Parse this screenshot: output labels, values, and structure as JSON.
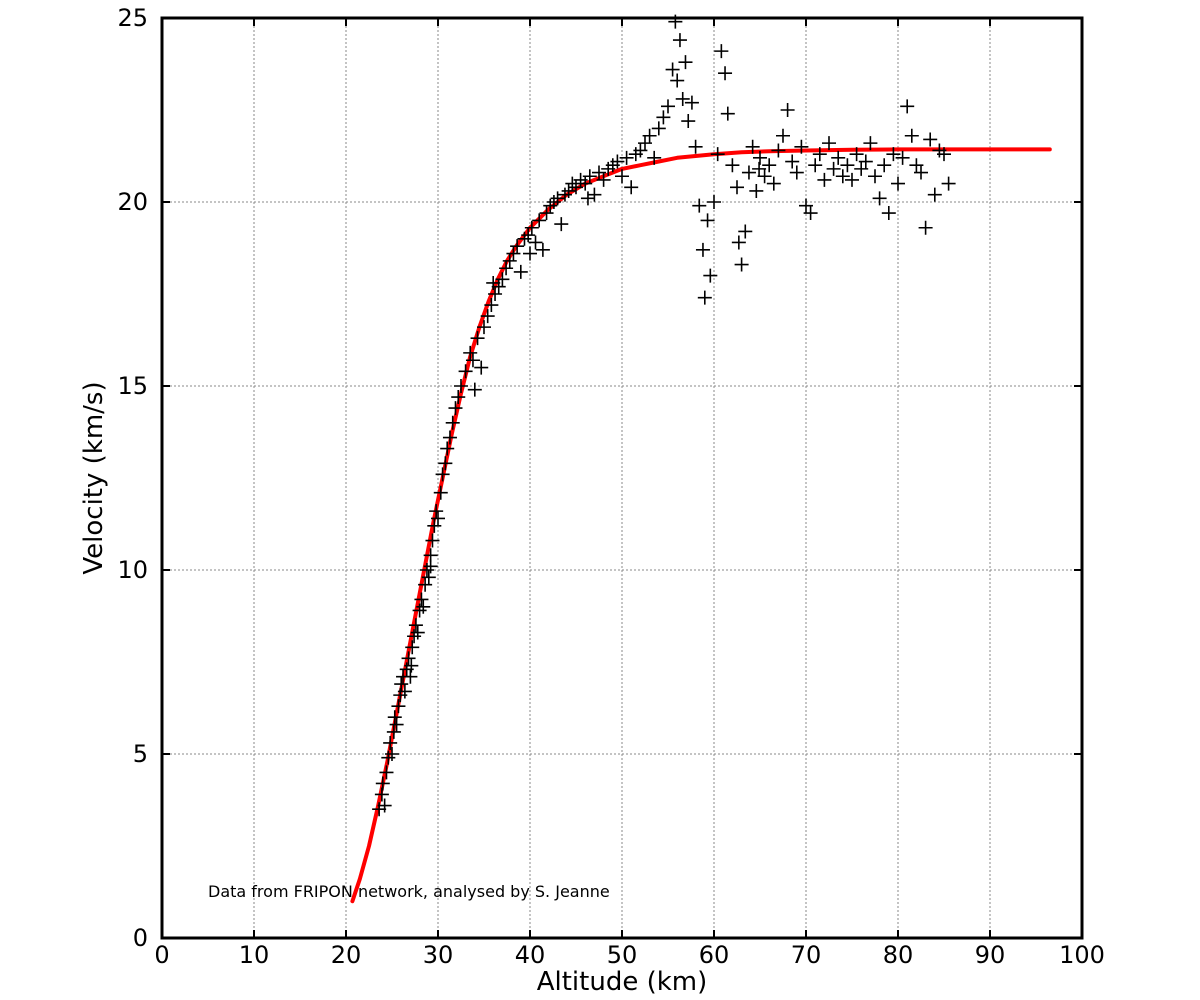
{
  "chart_data": {
    "type": "scatter",
    "title": "",
    "xlabel": "Altitude (km)",
    "ylabel": "Velocity (km/s)",
    "xlim": [
      0,
      100
    ],
    "ylim": [
      0,
      25
    ],
    "xticks": [
      "0",
      "10",
      "20",
      "30",
      "40",
      "50",
      "60",
      "70",
      "80",
      "90",
      "100"
    ],
    "yticks": [
      "0",
      "5",
      "10",
      "15",
      "20",
      "25"
    ],
    "grid": true,
    "legend": "none",
    "annotation": "Data from FRIPON network, analysed by S. Jeanne",
    "colors": {
      "points": "#000000",
      "fit": "#ff0000"
    },
    "series": [
      {
        "marker": "plus",
        "points": [
          [
            23.6,
            3.5
          ],
          [
            23.9,
            3.9
          ],
          [
            24.0,
            4.2
          ],
          [
            24.2,
            3.6
          ],
          [
            24.4,
            4.5
          ],
          [
            24.6,
            4.9
          ],
          [
            24.8,
            5.3
          ],
          [
            25.0,
            5.0
          ],
          [
            25.2,
            5.6
          ],
          [
            25.3,
            6.0
          ],
          [
            25.5,
            5.8
          ],
          [
            25.7,
            6.3
          ],
          [
            25.9,
            6.6
          ],
          [
            26.0,
            6.9
          ],
          [
            26.2,
            7.1
          ],
          [
            26.4,
            6.7
          ],
          [
            26.6,
            7.3
          ],
          [
            26.8,
            7.6
          ],
          [
            27.0,
            7.1
          ],
          [
            27.2,
            7.9
          ],
          [
            27.4,
            8.2
          ],
          [
            27.6,
            8.5
          ],
          [
            27.8,
            8.3
          ],
          [
            28.0,
            8.9
          ],
          [
            28.2,
            9.2
          ],
          [
            28.4,
            9.0
          ],
          [
            28.6,
            9.6
          ],
          [
            28.8,
            10.0
          ],
          [
            29.0,
            9.8
          ],
          [
            29.2,
            10.4
          ],
          [
            29.4,
            10.8
          ],
          [
            29.6,
            11.2
          ],
          [
            29.8,
            11.6
          ],
          [
            30.0,
            11.4
          ],
          [
            30.3,
            12.1
          ],
          [
            30.5,
            12.6
          ],
          [
            30.8,
            12.9
          ],
          [
            31.0,
            13.3
          ],
          [
            31.3,
            13.6
          ],
          [
            31.6,
            14.0
          ],
          [
            31.9,
            14.4
          ],
          [
            32.2,
            14.7
          ],
          [
            32.5,
            15.0
          ],
          [
            33.0,
            15.4
          ],
          [
            33.5,
            15.9
          ],
          [
            34.0,
            14.9
          ],
          [
            34.3,
            16.3
          ],
          [
            34.7,
            15.5
          ],
          [
            35.0,
            16.6
          ],
          [
            35.4,
            16.9
          ],
          [
            35.8,
            17.2
          ],
          [
            36.2,
            17.5
          ],
          [
            36.6,
            17.7
          ],
          [
            37.0,
            17.9
          ],
          [
            37.4,
            18.2
          ],
          [
            37.8,
            18.4
          ],
          [
            38.2,
            18.6
          ],
          [
            38.6,
            18.8
          ],
          [
            39.0,
            18.1
          ],
          [
            39.4,
            19.0
          ],
          [
            39.8,
            19.1
          ],
          [
            40.2,
            19.3
          ],
          [
            40.6,
            18.9
          ],
          [
            41.0,
            19.5
          ],
          [
            41.4,
            18.7
          ],
          [
            41.8,
            19.7
          ],
          [
            42.2,
            19.9
          ],
          [
            42.6,
            20.0
          ],
          [
            43.0,
            20.1
          ],
          [
            43.4,
            19.4
          ],
          [
            43.8,
            20.2
          ],
          [
            44.2,
            20.3
          ],
          [
            44.6,
            20.5
          ],
          [
            45.0,
            20.4
          ],
          [
            45.5,
            20.6
          ],
          [
            46.0,
            20.5
          ],
          [
            46.5,
            20.7
          ],
          [
            47.0,
            20.2
          ],
          [
            47.5,
            20.8
          ],
          [
            48.0,
            20.6
          ],
          [
            48.5,
            20.9
          ],
          [
            49.0,
            21.0
          ],
          [
            49.5,
            21.1
          ],
          [
            50.0,
            20.7
          ],
          [
            50.5,
            21.2
          ],
          [
            51.0,
            20.4
          ],
          [
            51.5,
            21.3
          ],
          [
            52.0,
            21.4
          ],
          [
            52.5,
            21.6
          ],
          [
            53.0,
            21.8
          ],
          [
            53.5,
            21.2
          ],
          [
            54.0,
            22.0
          ],
          [
            54.5,
            22.3
          ],
          [
            55.0,
            22.6
          ],
          [
            55.5,
            23.6
          ],
          [
            55.8,
            24.9
          ],
          [
            56.0,
            23.3
          ],
          [
            56.3,
            24.4
          ],
          [
            56.6,
            22.8
          ],
          [
            56.9,
            23.8
          ],
          [
            57.2,
            22.2
          ],
          [
            57.6,
            22.7
          ],
          [
            58.0,
            21.5
          ],
          [
            58.4,
            19.9
          ],
          [
            58.8,
            18.7
          ],
          [
            59.0,
            17.4
          ],
          [
            59.3,
            19.5
          ],
          [
            59.6,
            18.0
          ],
          [
            60.0,
            20.0
          ],
          [
            60.4,
            21.3
          ],
          [
            60.8,
            24.1
          ],
          [
            61.2,
            23.5
          ],
          [
            61.5,
            22.4
          ],
          [
            62.0,
            21.0
          ],
          [
            62.5,
            20.4
          ],
          [
            63.0,
            18.3
          ],
          [
            63.4,
            19.2
          ],
          [
            63.8,
            20.8
          ],
          [
            64.2,
            21.5
          ],
          [
            64.6,
            20.3
          ],
          [
            65.0,
            21.2
          ],
          [
            65.5,
            20.7
          ],
          [
            66.0,
            21.0
          ],
          [
            66.5,
            20.5
          ],
          [
            67.0,
            21.4
          ],
          [
            67.5,
            21.8
          ],
          [
            68.0,
            22.5
          ],
          [
            68.5,
            21.1
          ],
          [
            69.0,
            20.8
          ],
          [
            69.5,
            21.5
          ],
          [
            70.0,
            19.9
          ],
          [
            70.5,
            19.7
          ],
          [
            71.0,
            21.0
          ],
          [
            71.5,
            21.3
          ],
          [
            72.0,
            20.6
          ],
          [
            72.5,
            21.6
          ],
          [
            73.0,
            20.9
          ],
          [
            73.5,
            21.2
          ],
          [
            74.0,
            20.7
          ],
          [
            74.5,
            21.0
          ],
          [
            75.0,
            20.6
          ],
          [
            75.5,
            21.3
          ],
          [
            76.0,
            20.9
          ],
          [
            76.5,
            21.1
          ],
          [
            77.0,
            21.6
          ],
          [
            77.5,
            20.7
          ],
          [
            78.0,
            20.1
          ],
          [
            78.5,
            21.0
          ],
          [
            79.0,
            19.7
          ],
          [
            79.5,
            21.3
          ],
          [
            80.0,
            20.5
          ],
          [
            80.5,
            21.2
          ],
          [
            81.0,
            22.6
          ],
          [
            81.5,
            21.8
          ],
          [
            82.0,
            21.0
          ],
          [
            82.5,
            20.8
          ],
          [
            83.0,
            19.3
          ],
          [
            83.5,
            21.7
          ],
          [
            84.0,
            20.2
          ],
          [
            84.5,
            21.4
          ],
          [
            85.0,
            21.3
          ],
          [
            85.5,
            20.5
          ],
          [
            29.2,
            10.1
          ],
          [
            27.1,
            7.4
          ],
          [
            33.8,
            15.7
          ],
          [
            36.0,
            17.8
          ],
          [
            40.0,
            18.6
          ],
          [
            46.3,
            20.1
          ],
          [
            62.7,
            18.9
          ],
          [
            64.9,
            20.9
          ]
        ]
      },
      {
        "marker": "line-dots",
        "points": [
          [
            20.7,
            1.0
          ],
          [
            21.5,
            1.6
          ],
          [
            22.5,
            2.5
          ],
          [
            23.5,
            3.6
          ],
          [
            24.5,
            4.8
          ],
          [
            25.5,
            6.1
          ],
          [
            26.5,
            7.4
          ],
          [
            27.5,
            8.7
          ],
          [
            28.5,
            10.0
          ],
          [
            29.5,
            11.3
          ],
          [
            30.5,
            12.5
          ],
          [
            31.5,
            13.7
          ],
          [
            32.5,
            14.8
          ],
          [
            33.5,
            15.8
          ],
          [
            34.5,
            16.6
          ],
          [
            35.5,
            17.3
          ],
          [
            36.5,
            17.9
          ],
          [
            37.5,
            18.4
          ],
          [
            38.5,
            18.8
          ],
          [
            40.0,
            19.3
          ],
          [
            42.0,
            19.8
          ],
          [
            44.0,
            20.2
          ],
          [
            46.0,
            20.5
          ],
          [
            48.0,
            20.7
          ],
          [
            50.0,
            20.9
          ],
          [
            52.0,
            21.0
          ],
          [
            54.0,
            21.1
          ],
          [
            56.0,
            21.2
          ],
          [
            58.0,
            21.25
          ],
          [
            60.0,
            21.3
          ],
          [
            63.0,
            21.35
          ],
          [
            66.0,
            21.38
          ],
          [
            70.0,
            21.4
          ],
          [
            75.0,
            21.42
          ],
          [
            80.0,
            21.43
          ],
          [
            85.0,
            21.43
          ],
          [
            90.0,
            21.43
          ],
          [
            96.5,
            21.43
          ]
        ]
      }
    ]
  }
}
